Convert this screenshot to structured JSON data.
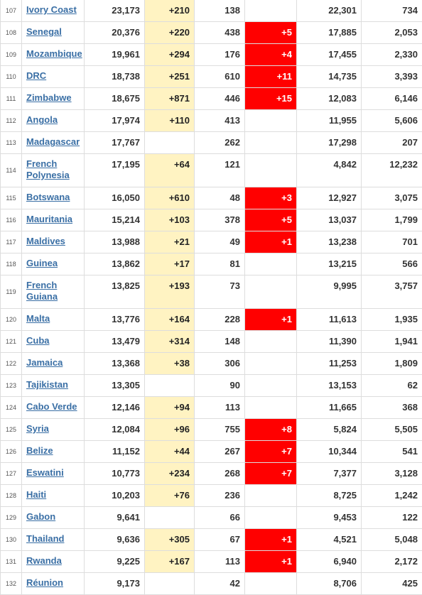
{
  "rows": [
    {
      "rank": "107",
      "country": "Ivory Coast",
      "total": "23,173",
      "new_cases": "+210",
      "deaths": "138",
      "new_deaths": "",
      "recovered": "22,301",
      "active": "734"
    },
    {
      "rank": "108",
      "country": "Senegal",
      "total": "20,376",
      "new_cases": "+220",
      "deaths": "438",
      "new_deaths": "+5",
      "recovered": "17,885",
      "active": "2,053"
    },
    {
      "rank": "109",
      "country": "Mozambique",
      "total": "19,961",
      "new_cases": "+294",
      "deaths": "176",
      "new_deaths": "+4",
      "recovered": "17,455",
      "active": "2,330"
    },
    {
      "rank": "110",
      "country": "DRC",
      "total": "18,738",
      "new_cases": "+251",
      "deaths": "610",
      "new_deaths": "+11",
      "recovered": "14,735",
      "active": "3,393"
    },
    {
      "rank": "111",
      "country": "Zimbabwe",
      "total": "18,675",
      "new_cases": "+871",
      "deaths": "446",
      "new_deaths": "+15",
      "recovered": "12,083",
      "active": "6,146"
    },
    {
      "rank": "112",
      "country": "Angola",
      "total": "17,974",
      "new_cases": "+110",
      "deaths": "413",
      "new_deaths": "",
      "recovered": "11,955",
      "active": "5,606"
    },
    {
      "rank": "113",
      "country": "Madagascar",
      "total": "17,767",
      "new_cases": "",
      "deaths": "262",
      "new_deaths": "",
      "recovered": "17,298",
      "active": "207"
    },
    {
      "rank": "114",
      "country": "French Polynesia",
      "total": "17,195",
      "new_cases": "+64",
      "deaths": "121",
      "new_deaths": "",
      "recovered": "4,842",
      "active": "12,232"
    },
    {
      "rank": "115",
      "country": "Botswana",
      "total": "16,050",
      "new_cases": "+610",
      "deaths": "48",
      "new_deaths": "+3",
      "recovered": "12,927",
      "active": "3,075"
    },
    {
      "rank": "116",
      "country": "Mauritania",
      "total": "15,214",
      "new_cases": "+103",
      "deaths": "378",
      "new_deaths": "+5",
      "recovered": "13,037",
      "active": "1,799"
    },
    {
      "rank": "117",
      "country": "Maldives",
      "total": "13,988",
      "new_cases": "+21",
      "deaths": "49",
      "new_deaths": "+1",
      "recovered": "13,238",
      "active": "701"
    },
    {
      "rank": "118",
      "country": "Guinea",
      "total": "13,862",
      "new_cases": "+17",
      "deaths": "81",
      "new_deaths": "",
      "recovered": "13,215",
      "active": "566"
    },
    {
      "rank": "119",
      "country": "French Guiana",
      "total": "13,825",
      "new_cases": "+193",
      "deaths": "73",
      "new_deaths": "",
      "recovered": "9,995",
      "active": "3,757"
    },
    {
      "rank": "120",
      "country": "Malta",
      "total": "13,776",
      "new_cases": "+164",
      "deaths": "228",
      "new_deaths": "+1",
      "recovered": "11,613",
      "active": "1,935"
    },
    {
      "rank": "121",
      "country": "Cuba",
      "total": "13,479",
      "new_cases": "+314",
      "deaths": "148",
      "new_deaths": "",
      "recovered": "11,390",
      "active": "1,941"
    },
    {
      "rank": "122",
      "country": "Jamaica",
      "total": "13,368",
      "new_cases": "+38",
      "deaths": "306",
      "new_deaths": "",
      "recovered": "11,253",
      "active": "1,809"
    },
    {
      "rank": "123",
      "country": "Tajikistan",
      "total": "13,305",
      "new_cases": "",
      "deaths": "90",
      "new_deaths": "",
      "recovered": "13,153",
      "active": "62"
    },
    {
      "rank": "124",
      "country": "Cabo Verde",
      "total": "12,146",
      "new_cases": "+94",
      "deaths": "113",
      "new_deaths": "",
      "recovered": "11,665",
      "active": "368"
    },
    {
      "rank": "125",
      "country": "Syria",
      "total": "12,084",
      "new_cases": "+96",
      "deaths": "755",
      "new_deaths": "+8",
      "recovered": "5,824",
      "active": "5,505"
    },
    {
      "rank": "126",
      "country": "Belize",
      "total": "11,152",
      "new_cases": "+44",
      "deaths": "267",
      "new_deaths": "+7",
      "recovered": "10,344",
      "active": "541"
    },
    {
      "rank": "127",
      "country": "Eswatini",
      "total": "10,773",
      "new_cases": "+234",
      "deaths": "268",
      "new_deaths": "+7",
      "recovered": "7,377",
      "active": "3,128"
    },
    {
      "rank": "128",
      "country": "Haiti",
      "total": "10,203",
      "new_cases": "+76",
      "deaths": "236",
      "new_deaths": "",
      "recovered": "8,725",
      "active": "1,242"
    },
    {
      "rank": "129",
      "country": "Gabon",
      "total": "9,641",
      "new_cases": "",
      "deaths": "66",
      "new_deaths": "",
      "recovered": "9,453",
      "active": "122"
    },
    {
      "rank": "130",
      "country": "Thailand",
      "total": "9,636",
      "new_cases": "+305",
      "deaths": "67",
      "new_deaths": "+1",
      "recovered": "4,521",
      "active": "5,048"
    },
    {
      "rank": "131",
      "country": "Rwanda",
      "total": "9,225",
      "new_cases": "+167",
      "deaths": "113",
      "new_deaths": "+1",
      "recovered": "6,940",
      "active": "2,172"
    },
    {
      "rank": "132",
      "country": "Réunion",
      "total": "9,173",
      "new_cases": "",
      "deaths": "42",
      "new_deaths": "",
      "recovered": "8,706",
      "active": "425"
    }
  ],
  "colors": {
    "new_cases_bg": "#fff3c2",
    "new_deaths_bg": "#ff0000",
    "link": "#3a6fa5",
    "border": "#dddddd"
  }
}
